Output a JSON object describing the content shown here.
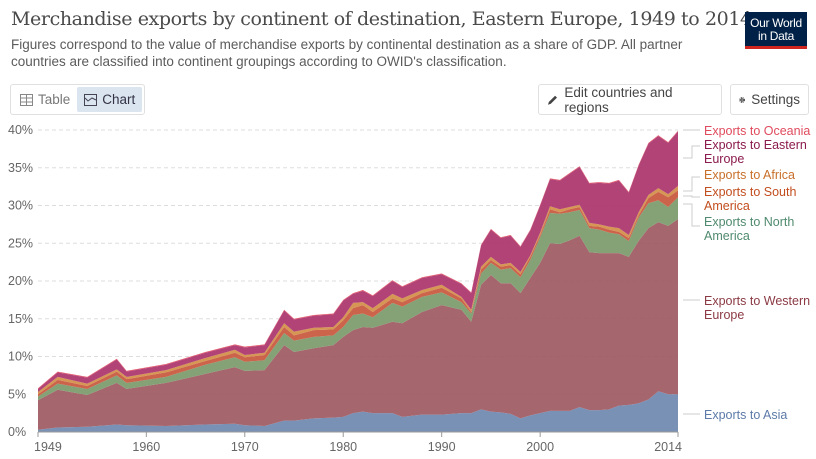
{
  "header": {
    "title": "Merchandise exports by continent of destination, Eastern Europe, 1949 to 2014",
    "subtitle": "Figures correspond to the value of merchandise exports by continental destination as a share of GDP. All partner countries are classified into continent groupings according to OWID's classification.",
    "logo": "Our World in Data"
  },
  "controls": {
    "tab_table": "Table",
    "tab_chart": "Chart",
    "edit_label": "Edit countries and regions",
    "settings_label": "Settings"
  },
  "chart_data": {
    "type": "area",
    "stacked": true,
    "ylim": [
      0,
      40
    ],
    "y_ticks": [
      "0%",
      "5%",
      "10%",
      "15%",
      "20%",
      "25%",
      "30%",
      "35%",
      "40%"
    ],
    "y_tick_values": [
      0,
      5,
      10,
      15,
      20,
      25,
      30,
      35,
      40
    ],
    "x_ticks": [
      "1949",
      "1960",
      "1970",
      "1980",
      "1990",
      "2000",
      "2014"
    ],
    "x_tick_values": [
      1949,
      1960,
      1970,
      1980,
      1990,
      2000,
      2014
    ],
    "xlim": [
      1949,
      2014
    ],
    "grid": "horizontal dashed",
    "legend": "right, inline labels",
    "x": [
      1949,
      1951,
      1954,
      1957,
      1958,
      1962,
      1966,
      1969,
      1970,
      1972,
      1974,
      1975,
      1977,
      1979,
      1980,
      1981,
      1982,
      1983,
      1985,
      1986,
      1988,
      1990,
      1992,
      1993,
      1994,
      1995,
      1996,
      1997,
      1998,
      1999,
      2000,
      2001,
      2002,
      2003,
      2004,
      2005,
      2006,
      2007,
      2008,
      2009,
      2010,
      2011,
      2012,
      2013,
      2014
    ],
    "series": [
      {
        "name": "Exports to Asia",
        "color": "#6f88b0",
        "label_color": "#5d7aa8",
        "values": [
          0.3,
          0.6,
          0.7,
          1.0,
          0.9,
          0.8,
          1.0,
          1.1,
          0.9,
          0.8,
          1.5,
          1.5,
          1.8,
          1.9,
          2.0,
          2.5,
          2.7,
          2.5,
          2.5,
          2.0,
          2.3,
          2.3,
          2.5,
          2.5,
          3.0,
          2.7,
          2.6,
          2.4,
          1.8,
          2.2,
          2.5,
          2.8,
          2.8,
          2.8,
          3.3,
          2.9,
          2.9,
          3.0,
          3.5,
          3.6,
          3.8,
          4.3,
          5.4,
          5.0,
          5.0
        ]
      },
      {
        "name": "Exports to Western Europe",
        "color": "#9e5961",
        "label_color": "#8b3a44",
        "values": [
          3.9,
          5.0,
          4.2,
          5.5,
          4.8,
          5.7,
          6.7,
          7.5,
          7.2,
          7.4,
          10.0,
          9.1,
          9.3,
          9.6,
          10.6,
          11.0,
          11.2,
          11.3,
          12.1,
          12.4,
          13.6,
          14.5,
          13.7,
          12.1,
          16.5,
          18.1,
          17.1,
          17.3,
          16.6,
          18.2,
          19.9,
          22.2,
          22.1,
          22.6,
          22.7,
          20.9,
          20.8,
          20.7,
          20.2,
          19.6,
          21.5,
          22.7,
          22.4,
          22.3,
          23.2
        ]
      },
      {
        "name": "Exports to North America",
        "color": "#7b9a6b",
        "label_color": "#4f8a6e",
        "values": [
          0.5,
          0.8,
          0.8,
          1.0,
          0.8,
          0.8,
          1.2,
          1.3,
          1.2,
          1.3,
          1.6,
          1.5,
          1.5,
          1.3,
          1.3,
          2.0,
          1.8,
          1.4,
          2.5,
          2.2,
          2.0,
          1.7,
          1.0,
          1.1,
          1.5,
          1.6,
          1.8,
          2.0,
          2.1,
          2.4,
          3.4,
          4.0,
          4.0,
          3.7,
          3.4,
          3.2,
          3.1,
          2.7,
          2.5,
          2.1,
          3.1,
          3.3,
          2.9,
          2.5,
          2.9
        ]
      },
      {
        "name": "Exports to South America",
        "color": "#c8573c",
        "label_color": "#c24e1e",
        "values": [
          0.3,
          0.5,
          0.4,
          0.5,
          0.5,
          0.6,
          0.5,
          0.6,
          0.6,
          0.7,
          0.8,
          0.7,
          0.9,
          0.8,
          0.9,
          0.9,
          1.1,
          0.7,
          0.6,
          0.6,
          0.5,
          0.6,
          0.5,
          0.2,
          0.5,
          0.4,
          0.4,
          0.4,
          0.4,
          0.4,
          0.3,
          0.5,
          0.2,
          0.4,
          0.4,
          0.3,
          0.4,
          0.4,
          0.3,
          0.4,
          0.3,
          0.7,
          1.1,
          1.3,
          0.9
        ]
      },
      {
        "name": "Exports to Africa",
        "color": "#d38d45",
        "label_color": "#c8702a",
        "values": [
          0.3,
          0.4,
          0.3,
          0.3,
          0.3,
          0.3,
          0.4,
          0.4,
          0.3,
          0.3,
          0.5,
          0.5,
          0.3,
          0.3,
          0.4,
          0.7,
          0.4,
          0.5,
          0.6,
          0.5,
          0.4,
          0.4,
          0.2,
          0.3,
          0.4,
          0.4,
          0.3,
          0.3,
          0.3,
          0.2,
          0.3,
          0.4,
          0.4,
          0.3,
          0.3,
          0.4,
          0.3,
          0.4,
          0.5,
          0.4,
          0.4,
          0.4,
          0.5,
          0.4,
          0.6
        ]
      },
      {
        "name": "Exports to Eastern Europe",
        "color": "#ab336b",
        "label_color": "#8b1a4e",
        "values": [
          0.4,
          0.6,
          0.8,
          1.3,
          0.7,
          0.7,
          0.7,
          0.6,
          1.0,
          1.0,
          1.7,
          1.6,
          1.6,
          1.7,
          2.2,
          1.2,
          1.5,
          1.6,
          1.7,
          1.5,
          1.6,
          1.4,
          1.7,
          2.2,
          2.8,
          3.6,
          3.5,
          3.6,
          3.3,
          3.3,
          3.6,
          3.6,
          3.8,
          4.4,
          5.0,
          5.2,
          5.5,
          5.7,
          6.3,
          5.6,
          6.2,
          6.8,
          6.9,
          6.8,
          7.2
        ]
      },
      {
        "name": "Exports to Oceania",
        "color": "#e0475d",
        "label_color": "#e04b5e",
        "values": [
          0.1,
          0.1,
          0.1,
          0.1,
          0.1,
          0.1,
          0.1,
          0.1,
          0.1,
          0.1,
          0.1,
          0.1,
          0.1,
          0.1,
          0.1,
          0.1,
          0.1,
          0.1,
          0.1,
          0.1,
          0.1,
          0.1,
          0.1,
          0.1,
          0.1,
          0.1,
          0.1,
          0.1,
          0.1,
          0.1,
          0.1,
          0.1,
          0.1,
          0.1,
          0.1,
          0.1,
          0.1,
          0.1,
          0.1,
          0.1,
          0.1,
          0.1,
          0.1,
          0.1,
          0.1
        ]
      }
    ]
  }
}
